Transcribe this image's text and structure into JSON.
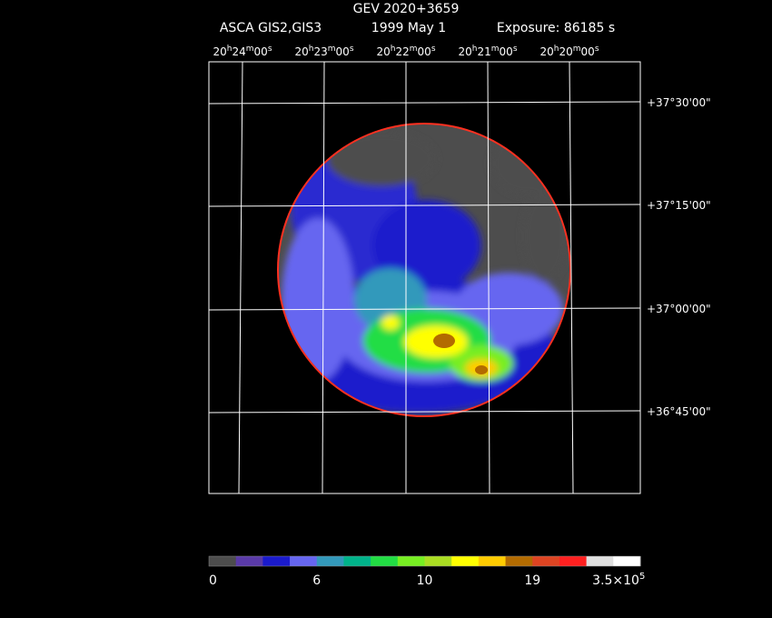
{
  "header": {
    "title": "GEV 2020+3659",
    "instrument": "ASCA GIS2,GIS3",
    "date": "1999 May  1",
    "exposure": "Exposure: 86185 s"
  },
  "ra_labels": [
    [
      "20",
      "h",
      "24",
      "m",
      "00",
      "s"
    ],
    [
      "20",
      "h",
      "23",
      "m",
      "00",
      "s"
    ],
    [
      "20",
      "h",
      "22",
      "m",
      "00",
      "s"
    ],
    [
      "20",
      "h",
      "21",
      "m",
      "00",
      "s"
    ],
    [
      "20",
      "h",
      "20",
      "m",
      "00",
      "s"
    ]
  ],
  "dec_labels": [
    "+37°30'00\"",
    "+37°15'00\"",
    "+37°00'00\"",
    "+36°45'00\""
  ],
  "colorbar": {
    "colors": [
      "#4d4d4d",
      "#5a3aa8",
      "#1a1acc",
      "#6666f0",
      "#3399bb",
      "#00b38a",
      "#22dd44",
      "#77ee22",
      "#aadd22",
      "#ffff00",
      "#ffcc00",
      "#b36b00",
      "#dd4422",
      "#ff2020",
      "#e0e0e0",
      "#ffffff"
    ],
    "labels": [
      [
        "0"
      ],
      [
        "6"
      ],
      [
        "10"
      ],
      [
        "19"
      ],
      [
        "3.5×10",
        "5"
      ]
    ]
  }
}
